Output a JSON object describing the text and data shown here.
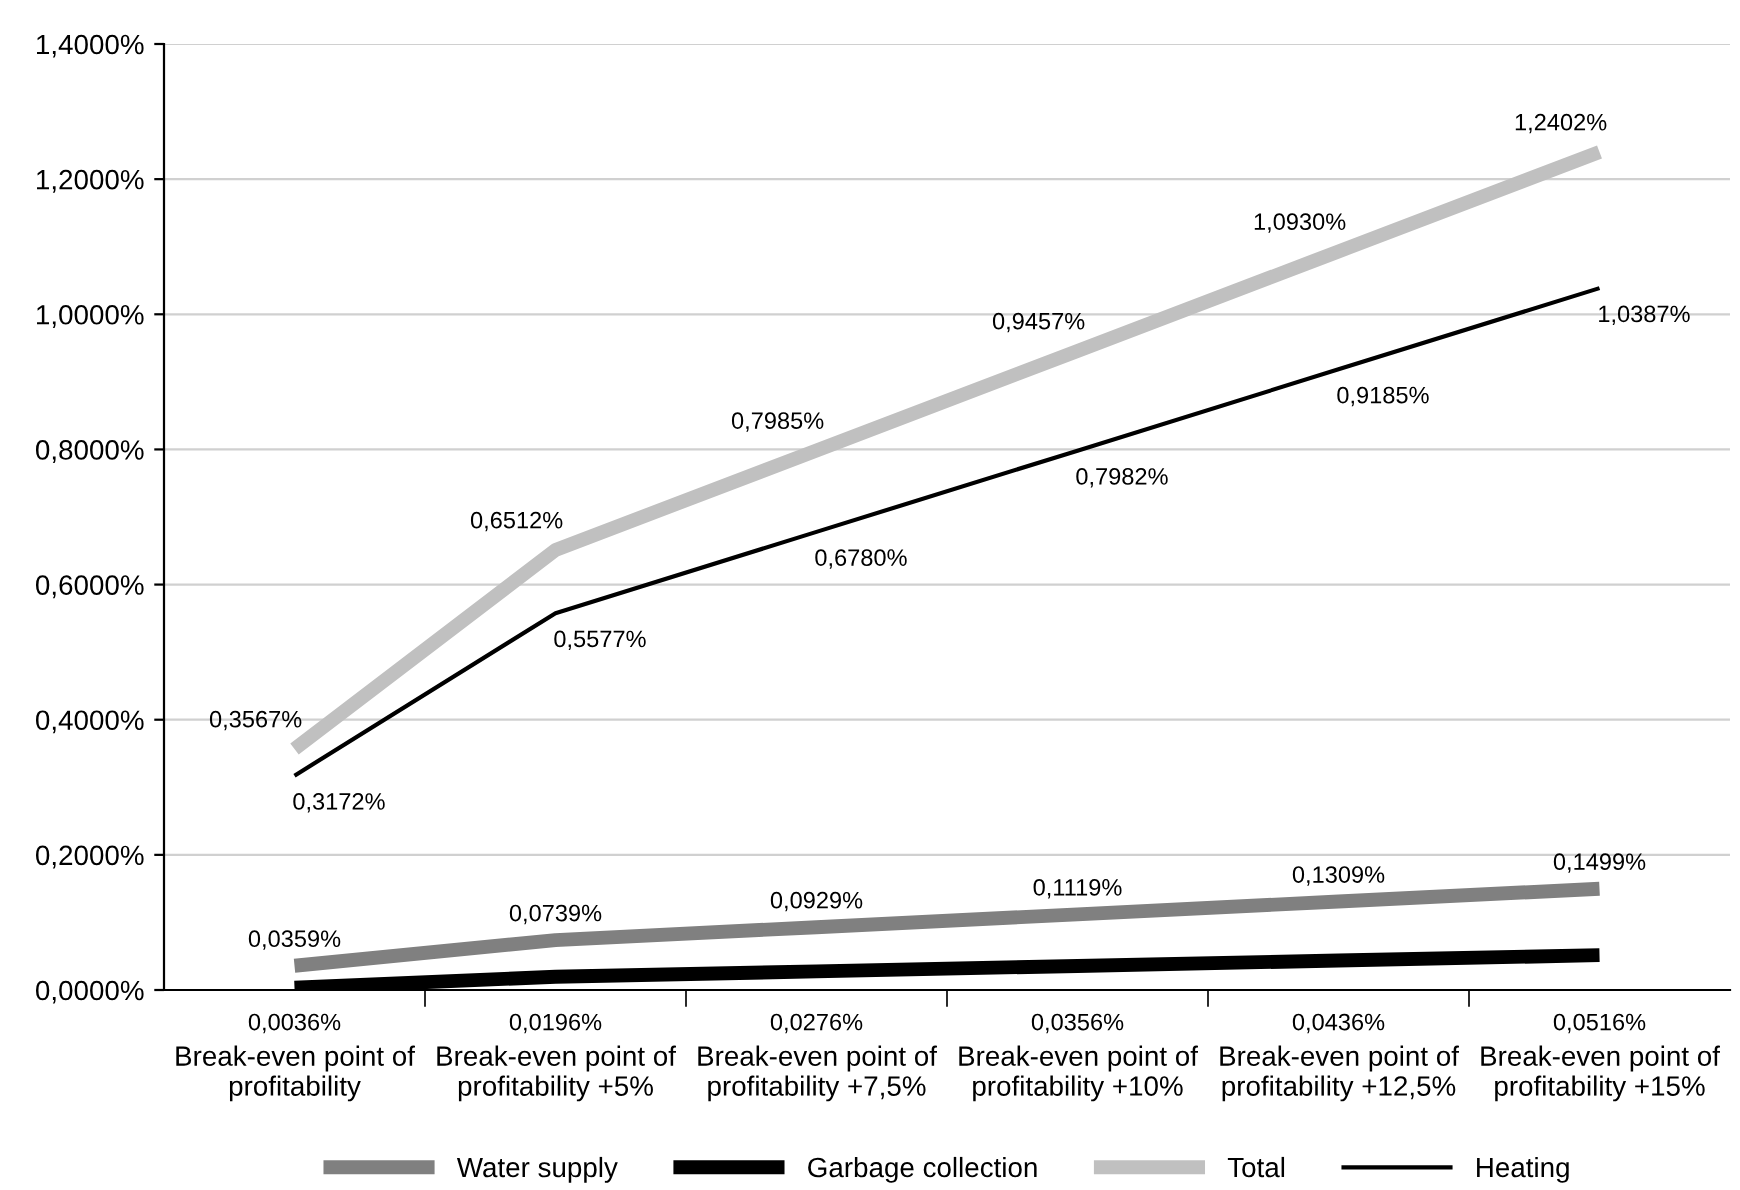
{
  "chart_data": {
    "type": "line",
    "categories": [
      "Break-even point of\nprofitability",
      "Break-even point of\nprofitability +5%",
      "Break-even point of\nprofitability +7,5%",
      "Break-even point of\nprofitability +10%",
      "Break-even point of\nprofitability +12,5%",
      "Break-even point of\nprofitability +15%"
    ],
    "series": [
      {
        "name": "Water supply",
        "color": "#808080",
        "values": [
          0.0359,
          0.0739,
          0.0929,
          0.1119,
          0.1309,
          0.1499
        ],
        "value_labels": [
          "0,0359%",
          "0,0739%",
          "0,0929%",
          "0,1119%",
          "0,1309%",
          "0,1499%"
        ]
      },
      {
        "name": "Garbage collection",
        "color": "#000000",
        "values": [
          0.0036,
          0.0196,
          0.0276,
          0.0356,
          0.0436,
          0.0516
        ],
        "value_labels": [
          "0,0036%",
          "0,0196%",
          "0,0276%",
          "0,0356%",
          "0,0436%",
          "0,0516%"
        ]
      },
      {
        "name": "Total",
        "color": "#c0c0c0",
        "values": [
          0.3567,
          0.6512,
          0.7985,
          0.9457,
          1.093,
          1.2402
        ],
        "value_labels": [
          "0,3567%",
          "0,6512%",
          "0,7985%",
          "0,9457%",
          "1,0930%",
          "1,2402%"
        ]
      },
      {
        "name": "Heating",
        "color": "#000000",
        "values": [
          0.3172,
          0.5577,
          0.678,
          0.7982,
          0.9185,
          1.0387
        ],
        "value_labels": [
          "0,3172%",
          "0,5577%",
          "0,6780%",
          "0,7982%",
          "0,9185%",
          "1,0387%"
        ]
      }
    ],
    "ylim": [
      0,
      1.4
    ],
    "yticks": [
      {
        "value": 0,
        "label": "0,0000%"
      },
      {
        "value": 0.2,
        "label": "0,2000%"
      },
      {
        "value": 0.4,
        "label": "0,4000%"
      },
      {
        "value": 0.6,
        "label": "0,6000%"
      },
      {
        "value": 0.8,
        "label": "0,8000%"
      },
      {
        "value": 1.0,
        "label": "1,0000%"
      },
      {
        "value": 1.2,
        "label": "1,2000%"
      },
      {
        "value": 1.4,
        "label": "1,4000%"
      }
    ],
    "grid": "y",
    "legend": "bottom",
    "marker": "none",
    "line_style": "solid"
  }
}
